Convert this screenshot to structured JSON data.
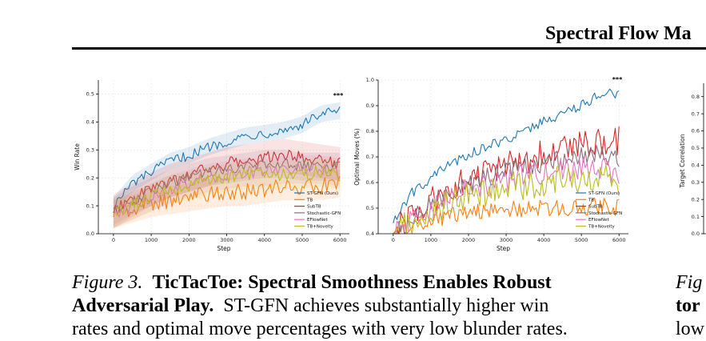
{
  "header": {
    "running_title": "Spectral Flow Ma"
  },
  "figure3": {
    "caption": {
      "label": "Figure 3.",
      "title_line1": "TicTacToe: Spectral Smoothness Enables Robust",
      "title_line2": "Adversarial Play.",
      "body_line2": "ST-GFN achieves substantially higher win",
      "body_line3": "rates and optimal move percentages with very low blunder rates."
    }
  },
  "figure4_partial": {
    "caption_fragment": {
      "line1": "Fig",
      "line2": "tor",
      "line3": "low"
    }
  },
  "colors": {
    "ST-GFN (Ours)": "#1f77b4",
    "TB": "#ff7f0e",
    "SubTB": "#d62728",
    "Stochastic-GFN": "#8c6d7e",
    "EFlowNet": "#e377c2",
    "TB+Novelty": "#bcbd22"
  },
  "chart_data": [
    {
      "type": "line",
      "title": "",
      "xlabel": "Step",
      "ylabel": "Win Rate",
      "xlim": [
        -400,
        6250
      ],
      "ylim": [
        0,
        0.55
      ],
      "xticks": [
        "0",
        "1000",
        "2000",
        "3000",
        "4000",
        "5000",
        "6000"
      ],
      "yticks": [
        "0.0",
        "0.1",
        "0.2",
        "0.3",
        "0.4",
        "0.5"
      ],
      "annotation": "***",
      "shaded_confidence_bands": true,
      "grid": true,
      "legend_position": "lower-right",
      "x": [
        0,
        500,
        1000,
        1500,
        2000,
        2500,
        3000,
        3500,
        4000,
        4500,
        5000,
        5500,
        6000
      ],
      "series": [
        {
          "name": "ST-GFN (Ours)",
          "values": [
            0.1,
            0.18,
            0.22,
            0.26,
            0.28,
            0.31,
            0.33,
            0.35,
            0.36,
            0.37,
            0.39,
            0.43,
            0.44
          ]
        },
        {
          "name": "TB",
          "values": [
            0.07,
            0.09,
            0.11,
            0.12,
            0.13,
            0.14,
            0.15,
            0.15,
            0.16,
            0.17,
            0.17,
            0.17,
            0.18
          ]
        },
        {
          "name": "SubTB",
          "values": [
            0.08,
            0.12,
            0.16,
            0.19,
            0.21,
            0.23,
            0.25,
            0.26,
            0.27,
            0.28,
            0.27,
            0.26,
            0.25
          ]
        },
        {
          "name": "Stochastic-GFN",
          "values": [
            0.08,
            0.12,
            0.15,
            0.18,
            0.2,
            0.22,
            0.23,
            0.24,
            0.25,
            0.25,
            0.24,
            0.24,
            0.24
          ]
        },
        {
          "name": "EFlowNet",
          "values": [
            0.07,
            0.1,
            0.13,
            0.16,
            0.18,
            0.2,
            0.21,
            0.22,
            0.22,
            0.23,
            0.23,
            0.23,
            0.22
          ]
        },
        {
          "name": "TB+Novelty",
          "values": [
            0.07,
            0.1,
            0.13,
            0.16,
            0.17,
            0.19,
            0.2,
            0.21,
            0.21,
            0.21,
            0.21,
            0.22,
            0.21
          ]
        }
      ]
    },
    {
      "type": "line",
      "title": "",
      "xlabel": "Step",
      "ylabel": "Optimal Moves (%)",
      "xlim": [
        -400,
        6250
      ],
      "ylim": [
        0.4,
        1.0
      ],
      "xticks": [
        "0",
        "1000",
        "2000",
        "3000",
        "4000",
        "5000",
        "6000"
      ],
      "yticks": [
        "0.4",
        "0.5",
        "0.6",
        "0.7",
        "0.8",
        "0.9",
        "1.0"
      ],
      "annotation": "***",
      "grid": true,
      "legend_position": "lower-right",
      "x": [
        0,
        500,
        1000,
        1500,
        2000,
        2500,
        3000,
        3500,
        4000,
        4500,
        5000,
        5500,
        6000
      ],
      "series": [
        {
          "name": "ST-GFN (Ours)",
          "values": [
            0.45,
            0.56,
            0.62,
            0.67,
            0.71,
            0.74,
            0.77,
            0.8,
            0.84,
            0.87,
            0.9,
            0.95,
            0.94
          ]
        },
        {
          "name": "TB",
          "values": [
            0.4,
            0.43,
            0.46,
            0.47,
            0.48,
            0.49,
            0.5,
            0.5,
            0.5,
            0.5,
            0.5,
            0.51,
            0.5
          ]
        },
        {
          "name": "SubTB",
          "values": [
            0.4,
            0.47,
            0.53,
            0.57,
            0.61,
            0.64,
            0.66,
            0.69,
            0.71,
            0.72,
            0.74,
            0.77,
            0.76
          ]
        },
        {
          "name": "Stochastic-GFN",
          "values": [
            0.4,
            0.46,
            0.52,
            0.56,
            0.6,
            0.62,
            0.64,
            0.66,
            0.68,
            0.69,
            0.7,
            0.71,
            0.7
          ]
        },
        {
          "name": "EFlowNet",
          "values": [
            0.4,
            0.45,
            0.5,
            0.54,
            0.57,
            0.59,
            0.61,
            0.63,
            0.64,
            0.65,
            0.65,
            0.66,
            0.64
          ]
        },
        {
          "name": "TB+Novelty",
          "values": [
            0.4,
            0.44,
            0.49,
            0.52,
            0.54,
            0.56,
            0.58,
            0.59,
            0.6,
            0.61,
            0.61,
            0.62,
            0.6
          ]
        }
      ]
    },
    {
      "type": "line",
      "title": "",
      "xlabel": "",
      "ylabel": "Target Correlation",
      "ylim": [
        0.0,
        0.85
      ],
      "yticks": [
        "0.0",
        "0.1",
        "0.2",
        "0.3",
        "0.4",
        "0.5",
        "0.6",
        "0.7",
        "0.8"
      ],
      "partially_visible": true
    }
  ]
}
